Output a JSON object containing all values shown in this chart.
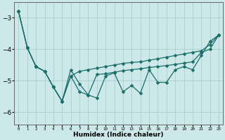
{
  "xlabel": "Humidex (Indice chaleur)",
  "bg_color": "#cce8e8",
  "grid_color": "#aacfcf",
  "line_color": "#1a6e6a",
  "x_data": [
    0,
    1,
    2,
    3,
    4,
    5,
    6,
    7,
    8,
    9,
    10,
    11,
    12,
    13,
    14,
    15,
    16,
    17,
    18,
    19,
    20,
    21,
    22,
    23
  ],
  "series": [
    [
      -2.8,
      -3.95,
      -4.55,
      -4.7,
      -5.2,
      -5.65,
      -4.85,
      -4.7,
      -4.65,
      -4.6,
      -4.55,
      -4.5,
      -4.45,
      -4.42,
      -4.4,
      -4.35,
      -4.3,
      -4.25,
      -4.2,
      -4.15,
      -4.1,
      -4.05,
      -3.85,
      -3.55
    ],
    [
      -2.8,
      -3.95,
      -4.55,
      -4.7,
      -5.2,
      -5.65,
      -4.85,
      -5.35,
      -5.45,
      -4.8,
      -4.78,
      -4.73,
      -4.68,
      -4.65,
      -4.62,
      -4.58,
      -4.55,
      -4.52,
      -4.48,
      -4.44,
      -4.4,
      -4.1,
      -4.0,
      -3.55
    ],
    [
      -2.8,
      -3.95,
      -4.55,
      -4.7,
      -5.2,
      -5.65,
      -4.65,
      -5.1,
      -5.45,
      -5.55,
      -4.85,
      -4.75,
      -5.35,
      -5.15,
      -5.4,
      -4.65,
      -5.05,
      -5.05,
      -4.65,
      -4.55,
      -4.65,
      -4.2,
      -3.75,
      -3.55
    ]
  ],
  "ylim": [
    -6.4,
    -2.5
  ],
  "xlim": [
    -0.5,
    23.5
  ],
  "yticks": [
    -6,
    -5,
    -4,
    -3
  ],
  "xtick_labels": [
    "0",
    "1",
    "2",
    "3",
    "4",
    "5",
    "6",
    "7",
    "8",
    "9",
    "10",
    "11",
    "12",
    "13",
    "14",
    "15",
    "16",
    "17",
    "18",
    "19",
    "20",
    "21",
    "22",
    "23"
  ],
  "markersize": 2.5,
  "linewidth": 0.9
}
